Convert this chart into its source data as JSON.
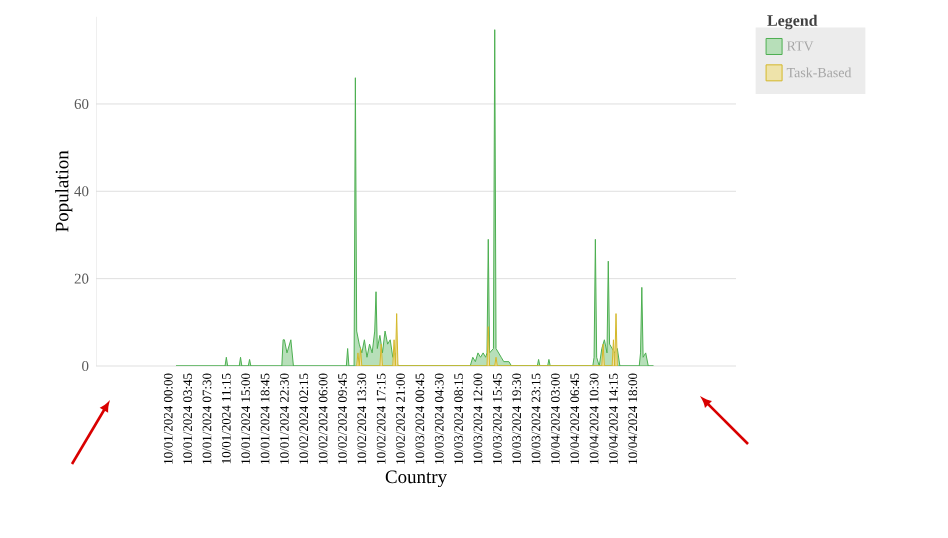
{
  "chart_data": {
    "type": "area",
    "xlabel": "Country",
    "ylabel": "Population",
    "legend_title": "Legend",
    "legend": "right",
    "grid": "y",
    "xlim": [
      "2024-09-30T10:00",
      "2024-10-05T14:00"
    ],
    "ylim": [
      0,
      80
    ],
    "yticks": [
      0,
      20,
      40,
      60
    ],
    "xticks": [
      {
        "value": "2024-10-01T00:00",
        "label": "10/01/2024 00:00"
      },
      {
        "value": "2024-10-01T03:45",
        "label": "10/01/2024 03:45"
      },
      {
        "value": "2024-10-01T07:30",
        "label": "10/01/2024 07:30"
      },
      {
        "value": "2024-10-01T11:15",
        "label": "10/01/2024 11:15"
      },
      {
        "value": "2024-10-01T15:00",
        "label": "10/01/2024 15:00"
      },
      {
        "value": "2024-10-01T18:45",
        "label": "10/01/2024 18:45"
      },
      {
        "value": "2024-10-01T22:30",
        "label": "10/01/2024 22:30"
      },
      {
        "value": "2024-10-02T02:15",
        "label": "10/02/2024 02:15"
      },
      {
        "value": "2024-10-02T06:00",
        "label": "10/02/2024 06:00"
      },
      {
        "value": "2024-10-02T09:45",
        "label": "10/02/2024 09:45"
      },
      {
        "value": "2024-10-02T13:30",
        "label": "10/02/2024 13:30"
      },
      {
        "value": "2024-10-02T17:15",
        "label": "10/02/2024 17:15"
      },
      {
        "value": "2024-10-02T21:00",
        "label": "10/02/2024 21:00"
      },
      {
        "value": "2024-10-03T00:45",
        "label": "10/03/2024 00:45"
      },
      {
        "value": "2024-10-03T04:30",
        "label": "10/03/2024 04:30"
      },
      {
        "value": "2024-10-03T08:15",
        "label": "10/03/2024 08:15"
      },
      {
        "value": "2024-10-03T12:00",
        "label": "10/03/2024 12:00"
      },
      {
        "value": "2024-10-03T15:45",
        "label": "10/03/2024 15:45"
      },
      {
        "value": "2024-10-03T19:30",
        "label": "10/03/2024 19:30"
      },
      {
        "value": "2024-10-03T23:15",
        "label": "10/03/2024 23:15"
      },
      {
        "value": "2024-10-04T03:00",
        "label": "10/04/2024 03:00"
      },
      {
        "value": "2024-10-04T06:45",
        "label": "10/04/2024 06:45"
      },
      {
        "value": "2024-10-04T10:30",
        "label": "10/04/2024 10:30"
      },
      {
        "value": "2024-10-04T14:15",
        "label": "10/04/2024 14:15"
      },
      {
        "value": "2024-10-04T18:00",
        "label": "10/04/2024 18:00"
      }
    ],
    "series": [
      {
        "name": "RTV",
        "color": "#4caf50",
        "x": [
          "2024-10-01T01:30",
          "2024-10-01T11:00",
          "2024-10-01T11:15",
          "2024-10-01T11:30",
          "2024-10-01T13:45",
          "2024-10-01T14:00",
          "2024-10-01T14:15",
          "2024-10-01T15:30",
          "2024-10-01T15:45",
          "2024-10-01T16:00",
          "2024-10-01T22:00",
          "2024-10-01T22:15",
          "2024-10-01T22:30",
          "2024-10-01T23:00",
          "2024-10-01T23:45",
          "2024-10-02T00:15",
          "2024-10-02T10:30",
          "2024-10-02T10:45",
          "2024-10-02T11:00",
          "2024-10-02T12:00",
          "2024-10-02T12:15",
          "2024-10-02T12:30",
          "2024-10-02T13:00",
          "2024-10-02T13:30",
          "2024-10-02T14:00",
          "2024-10-02T14:30",
          "2024-10-02T15:00",
          "2024-10-02T15:30",
          "2024-10-02T16:00",
          "2024-10-02T16:15",
          "2024-10-02T16:30",
          "2024-10-02T17:00",
          "2024-10-02T17:30",
          "2024-10-02T18:00",
          "2024-10-02T18:30",
          "2024-10-02T19:00",
          "2024-10-02T19:30",
          "2024-10-02T20:00",
          "2024-10-02T20:30",
          "2024-10-03T10:30",
          "2024-10-03T11:00",
          "2024-10-03T11:30",
          "2024-10-03T12:00",
          "2024-10-03T12:30",
          "2024-10-03T13:00",
          "2024-10-03T13:30",
          "2024-10-03T13:45",
          "2024-10-03T14:00",
          "2024-10-03T14:15",
          "2024-10-03T15:00",
          "2024-10-03T15:15",
          "2024-10-03T15:30",
          "2024-10-03T16:00",
          "2024-10-03T16:30",
          "2024-10-03T17:00",
          "2024-10-03T18:00",
          "2024-10-03T18:30",
          "2024-10-03T23:30",
          "2024-10-03T23:45",
          "2024-10-04T00:00",
          "2024-10-04T01:30",
          "2024-10-04T01:45",
          "2024-10-04T02:00",
          "2024-10-04T10:15",
          "2024-10-04T10:30",
          "2024-10-04T10:45",
          "2024-10-04T11:00",
          "2024-10-04T11:30",
          "2024-10-04T12:00",
          "2024-10-04T12:30",
          "2024-10-04T13:00",
          "2024-10-04T13:15",
          "2024-10-04T13:30",
          "2024-10-04T14:00",
          "2024-10-04T14:30",
          "2024-10-04T15:00",
          "2024-10-04T15:30",
          "2024-10-04T19:15",
          "2024-10-04T19:30",
          "2024-10-04T19:45",
          "2024-10-04T20:00",
          "2024-10-04T20:30",
          "2024-10-04T21:00",
          "2024-10-04T22:00"
        ],
        "values": [
          0,
          0,
          2,
          0,
          0,
          2,
          0,
          0,
          1.5,
          0,
          0,
          6,
          6,
          3,
          6,
          0,
          0,
          4,
          0,
          0,
          66,
          8,
          5,
          3,
          6,
          2,
          5,
          3,
          8,
          17,
          4,
          7,
          3,
          8,
          5,
          6,
          2,
          3,
          0,
          0,
          2,
          1,
          3,
          2,
          3,
          2,
          3,
          29,
          3,
          4,
          77,
          4,
          3,
          2,
          1,
          1,
          0,
          0,
          1.5,
          0,
          0,
          1.5,
          0,
          0,
          2,
          29,
          2,
          0,
          4,
          6,
          3,
          24,
          5,
          4,
          3,
          4,
          0,
          0,
          3,
          18,
          2,
          3,
          0,
          0
        ]
      },
      {
        "name": "Task-Based",
        "color": "#d4b82a",
        "x": [
          "2024-10-02T12:30",
          "2024-10-02T12:45",
          "2024-10-02T13:00",
          "2024-10-02T13:15",
          "2024-10-02T13:30",
          "2024-10-02T17:00",
          "2024-10-02T17:15",
          "2024-10-02T17:30",
          "2024-10-02T19:30",
          "2024-10-02T19:45",
          "2024-10-02T20:00",
          "2024-10-02T20:15",
          "2024-10-02T20:30",
          "2024-10-03T13:45",
          "2024-10-03T14:00",
          "2024-10-03T14:15",
          "2024-10-03T15:15",
          "2024-10-03T15:30",
          "2024-10-03T15:45",
          "2024-10-04T12:00",
          "2024-10-04T12:15",
          "2024-10-04T12:30",
          "2024-10-04T14:00",
          "2024-10-04T14:15",
          "2024-10-04T14:30",
          "2024-10-04T14:45",
          "2024-10-04T15:00"
        ],
        "values": [
          0,
          3,
          0,
          4,
          0,
          0,
          5,
          0,
          0,
          6,
          0,
          12,
          0,
          0,
          9,
          0,
          0,
          2,
          0,
          0,
          5,
          0,
          0,
          6,
          0,
          12,
          0
        ]
      }
    ]
  }
}
